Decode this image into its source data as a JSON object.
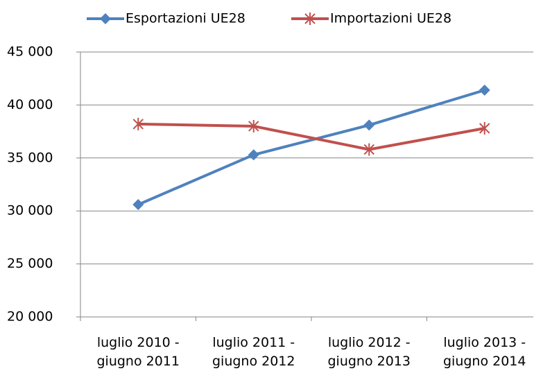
{
  "chart_data": {
    "type": "line",
    "categories": [
      "luglio 2010 - giugno 2011",
      "luglio 2011 - giugno 2012",
      "luglio 2012 - giugno 2013",
      "luglio 2013 - giugno 2014"
    ],
    "series": [
      {
        "name": "Esportazioni UE28",
        "color": "#4f81bd",
        "marker": "diamond",
        "values": [
          30600,
          35300,
          38100,
          41400
        ]
      },
      {
        "name": "Importazioni UE28",
        "color": "#c0504d",
        "marker": "star",
        "values": [
          38200,
          38000,
          35800,
          37800
        ]
      }
    ],
    "ylim": [
      20000,
      45000
    ],
    "yticks": [
      {
        "value": 20000,
        "label": "20 000"
      },
      {
        "value": 25000,
        "label": "25 000"
      },
      {
        "value": 30000,
        "label": "30 000"
      },
      {
        "value": 35000,
        "label": "35 000"
      },
      {
        "value": 40000,
        "label": "40 000"
      },
      {
        "value": 45000,
        "label": "45 000"
      }
    ],
    "grid": true,
    "legend": "top"
  }
}
